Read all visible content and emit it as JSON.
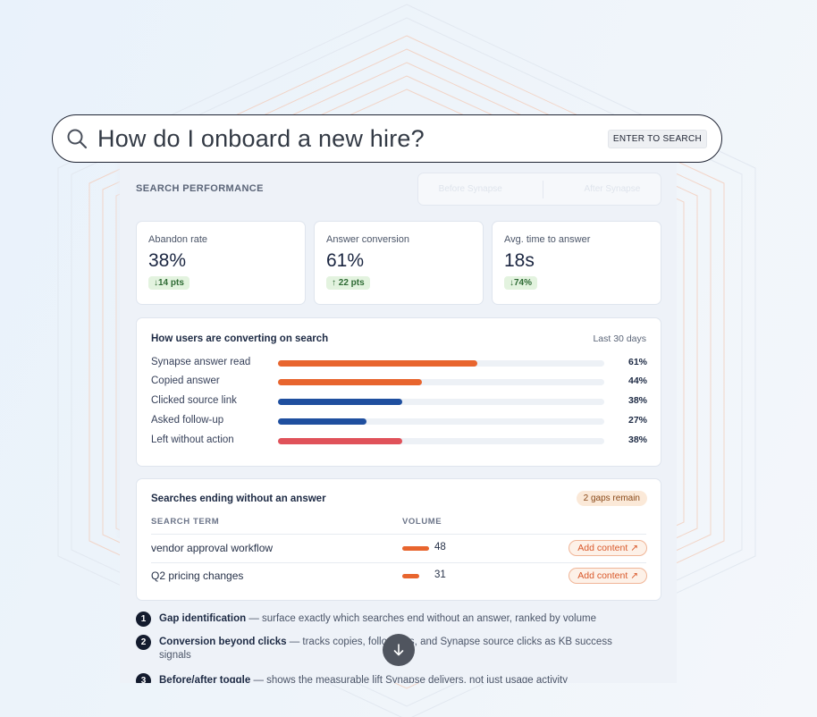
{
  "search": {
    "query": "How do I onboard a new hire?",
    "enter_hint": "ENTER TO SEARCH"
  },
  "panel": {
    "title": "SEARCH PERFORMANCE",
    "toggle": [
      "Before Synapse",
      "After Synapse"
    ]
  },
  "metrics": [
    {
      "label": "Abandon rate",
      "value": "38%",
      "delta": "↓14 pts"
    },
    {
      "label": "Answer conversion",
      "value": "61%",
      "delta": "↑ 22 pts"
    },
    {
      "label": "Avg. time to answer",
      "value": "18s",
      "delta": "↓74%"
    }
  ],
  "conversion": {
    "title": "How users are converting on search",
    "period": "Last 30 days",
    "rows": [
      {
        "label": "Synapse answer read",
        "percent": 61,
        "pct_text": "61%",
        "color": "#e8652e"
      },
      {
        "label": "Copied answer",
        "percent": 44,
        "pct_text": "44%",
        "color": "#e8652e"
      },
      {
        "label": "Clicked source link",
        "percent": 38,
        "pct_text": "38%",
        "color": "#1f4f9f"
      },
      {
        "label": "Asked follow-up",
        "percent": 27,
        "pct_text": "27%",
        "color": "#1f4f9f"
      },
      {
        "label": "Left without action",
        "percent": 38,
        "pct_text": "38%",
        "color": "#e0525a"
      }
    ]
  },
  "gaps": {
    "title": "Searches ending without an answer",
    "badge": "2 gaps remain",
    "col_term": "SEARCH TERM",
    "col_volume": "VOLUME",
    "action_label": "Add content ↗",
    "rows": [
      {
        "term": "vendor approval workflow",
        "volume": "48",
        "level": 48
      },
      {
        "term": "Q2 pricing changes",
        "volume": "31",
        "level": 31
      }
    ]
  },
  "features": [
    {
      "num": "1",
      "title": "Gap identification",
      "desc": " — surface exactly which searches end without an answer, ranked by volume"
    },
    {
      "num": "2",
      "title": "Conversion beyond clicks",
      "desc": " — tracks copies, follow-ups, and Synapse source clicks as KB success signals"
    },
    {
      "num": "3",
      "title": "Before/after toggle",
      "desc": " — shows the measurable lift Synapse delivers, not just usage activity"
    }
  ],
  "colors": {
    "accent": "#e8652e",
    "blue": "#1f4f9f",
    "red": "#e0525a"
  },
  "icons": {
    "search": "search-icon",
    "scroll": "arrow-down-icon",
    "external": "external-link-icon"
  }
}
